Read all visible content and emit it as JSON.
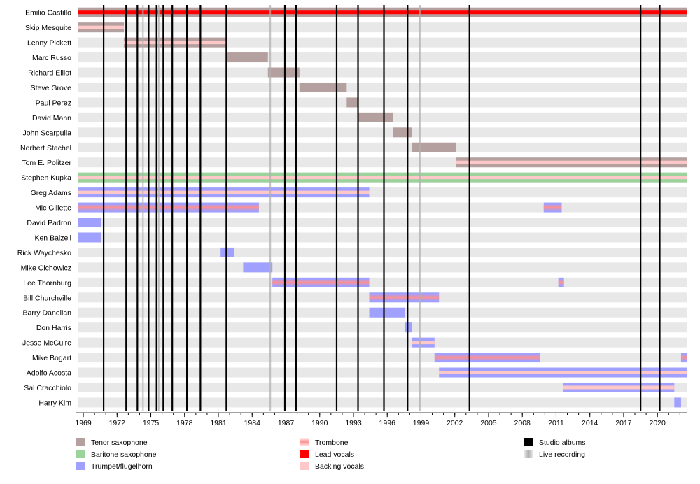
{
  "chart_data": {
    "type": "timeline",
    "x_range": [
      1968.5,
      2022.6
    ],
    "x_ticks": [
      "1969",
      "1972",
      "1975",
      "1978",
      "1981",
      "1984",
      "1987",
      "1990",
      "1993",
      "1996",
      "1999",
      "2002",
      "2005",
      "2008",
      "2011",
      "2014",
      "2017",
      "2020"
    ],
    "members": [
      {
        "name": "Emilio Castillo",
        "spans": [
          {
            "start": 1968.5,
            "end": 2022.6,
            "role": "Tenor saxophone",
            "secondary": "Lead vocals"
          }
        ]
      },
      {
        "name": "Skip Mesquite",
        "spans": [
          {
            "start": 1968.5,
            "end": 1972.6,
            "role": "Tenor saxophone",
            "secondary": "Backing vocals"
          }
        ]
      },
      {
        "name": "Lenny Pickett",
        "spans": [
          {
            "start": 1972.6,
            "end": 1981.7,
            "role": "Tenor saxophone",
            "secondary": "Backing vocals"
          }
        ]
      },
      {
        "name": "Marc Russo",
        "spans": [
          {
            "start": 1981.7,
            "end": 1985.4,
            "role": "Tenor saxophone"
          }
        ]
      },
      {
        "name": "Richard Elliot",
        "spans": [
          {
            "start": 1985.4,
            "end": 1988.2,
            "role": "Tenor saxophone"
          }
        ]
      },
      {
        "name": "Steve Grove",
        "spans": [
          {
            "start": 1988.2,
            "end": 1992.4,
            "role": "Tenor saxophone"
          }
        ]
      },
      {
        "name": "Paul Perez",
        "spans": [
          {
            "start": 1992.4,
            "end": 1993.4,
            "role": "Tenor saxophone"
          }
        ]
      },
      {
        "name": "David Mann",
        "spans": [
          {
            "start": 1993.4,
            "end": 1996.5,
            "role": "Tenor saxophone"
          }
        ]
      },
      {
        "name": "John Scarpulla",
        "spans": [
          {
            "start": 1996.5,
            "end": 1998.2,
            "role": "Tenor saxophone"
          }
        ]
      },
      {
        "name": "Norbert Stachel",
        "spans": [
          {
            "start": 1998.2,
            "end": 2002.1,
            "role": "Tenor saxophone"
          }
        ]
      },
      {
        "name": "Tom E. Politzer",
        "spans": [
          {
            "start": 2002.1,
            "end": 2022.6,
            "role": "Tenor saxophone",
            "secondary": "Backing vocals"
          }
        ]
      },
      {
        "name": "Stephen Kupka",
        "spans": [
          {
            "start": 1968.5,
            "end": 2022.6,
            "role": "Baritone saxophone",
            "secondary": "Backing vocals"
          }
        ]
      },
      {
        "name": "Greg Adams",
        "spans": [
          {
            "start": 1968.5,
            "end": 1994.4,
            "role": "Trumpet/flugelhorn",
            "secondary": "Backing vocals"
          }
        ]
      },
      {
        "name": "Mic Gillette",
        "spans": [
          {
            "start": 1968.5,
            "end": 1984.6,
            "role": "Trumpet/flugelhorn",
            "secondary": "Trombone"
          },
          {
            "start": 2009.9,
            "end": 2011.5,
            "role": "Trumpet/flugelhorn",
            "secondary": "Trombone"
          }
        ]
      },
      {
        "name": "David Padron",
        "spans": [
          {
            "start": 1968.5,
            "end": 1970.6,
            "role": "Trumpet/flugelhorn"
          }
        ]
      },
      {
        "name": "Ken Balzell",
        "spans": [
          {
            "start": 1968.5,
            "end": 1970.6,
            "role": "Trumpet/flugelhorn"
          }
        ]
      },
      {
        "name": "Rick Waychesko",
        "spans": [
          {
            "start": 1981.2,
            "end": 1982.4,
            "role": "Trumpet/flugelhorn"
          }
        ]
      },
      {
        "name": "Mike Cichowicz",
        "spans": [
          {
            "start": 1983.2,
            "end": 1985.8,
            "role": "Trumpet/flugelhorn"
          }
        ]
      },
      {
        "name": "Lee Thornburg",
        "spans": [
          {
            "start": 1985.8,
            "end": 1994.4,
            "role": "Trumpet/flugelhorn",
            "secondary": "Trombone"
          },
          {
            "start": 2011.2,
            "end": 2011.7,
            "role": "Trumpet/flugelhorn",
            "secondary": "Trombone"
          }
        ]
      },
      {
        "name": "Bill Churchville",
        "spans": [
          {
            "start": 1994.4,
            "end": 2000.6,
            "role": "Trumpet/flugelhorn",
            "secondary": "Trombone"
          }
        ]
      },
      {
        "name": "Barry Danelian",
        "spans": [
          {
            "start": 1994.4,
            "end": 1997.6,
            "role": "Trumpet/flugelhorn"
          }
        ]
      },
      {
        "name": "Don Harris",
        "spans": [
          {
            "start": 1997.6,
            "end": 1998.2,
            "role": "Trumpet/flugelhorn"
          }
        ]
      },
      {
        "name": "Jesse McGuire",
        "spans": [
          {
            "start": 1998.2,
            "end": 2000.2,
            "role": "Trumpet/flugelhorn",
            "secondary": "Backing vocals"
          }
        ]
      },
      {
        "name": "Mike Bogart",
        "spans": [
          {
            "start": 2000.2,
            "end": 2009.6,
            "role": "Trumpet/flugelhorn",
            "secondary": "Trombone"
          },
          {
            "start": 2022.1,
            "end": 2022.6,
            "role": "Trumpet/flugelhorn",
            "secondary": "Trombone"
          }
        ]
      },
      {
        "name": "Adolfo Acosta",
        "spans": [
          {
            "start": 2000.6,
            "end": 2022.6,
            "role": "Trumpet/flugelhorn",
            "secondary": "Backing vocals"
          }
        ]
      },
      {
        "name": "Sal Cracchiolo",
        "spans": [
          {
            "start": 2011.6,
            "end": 2021.5,
            "role": "Trumpet/flugelhorn",
            "secondary": "Backing vocals"
          }
        ]
      },
      {
        "name": "Harry Kim",
        "spans": [
          {
            "start": 2021.5,
            "end": 2022.1,
            "role": "Trumpet/flugelhorn"
          }
        ]
      }
    ],
    "studio_albums": [
      1970.8,
      1972.8,
      1973.8,
      1974.8,
      1975.5,
      1976.1,
      1976.9,
      1978.2,
      1979.4,
      1981.7,
      1986.9,
      1987.9,
      1991.5,
      1993.4,
      1995.7,
      1997.8,
      2003.3,
      2018.5,
      2020.2
    ],
    "live_recordings": [
      1974.3,
      1975.7,
      1985.6,
      1998.9
    ],
    "legend": [
      {
        "label": "Tenor saxophone",
        "color": "#b5a0a0",
        "kind": "bar"
      },
      {
        "label": "Baritone saxophone",
        "color": "#9cd29c",
        "kind": "bar"
      },
      {
        "label": "Trumpet/flugelhorn",
        "color": "#a0a0ff",
        "kind": "bar"
      },
      {
        "label": "Trombone",
        "color": "#ff9090",
        "kind": "fade"
      },
      {
        "label": "Lead vocals",
        "color": "#ff0000",
        "kind": "bar"
      },
      {
        "label": "Backing vocals",
        "color": "#ffc8c8",
        "kind": "bar"
      },
      {
        "label": "Studio albums",
        "color": "#000000",
        "kind": "bar"
      },
      {
        "label": "Live recording",
        "color": "#b0b0b0",
        "kind": "fade"
      }
    ]
  }
}
